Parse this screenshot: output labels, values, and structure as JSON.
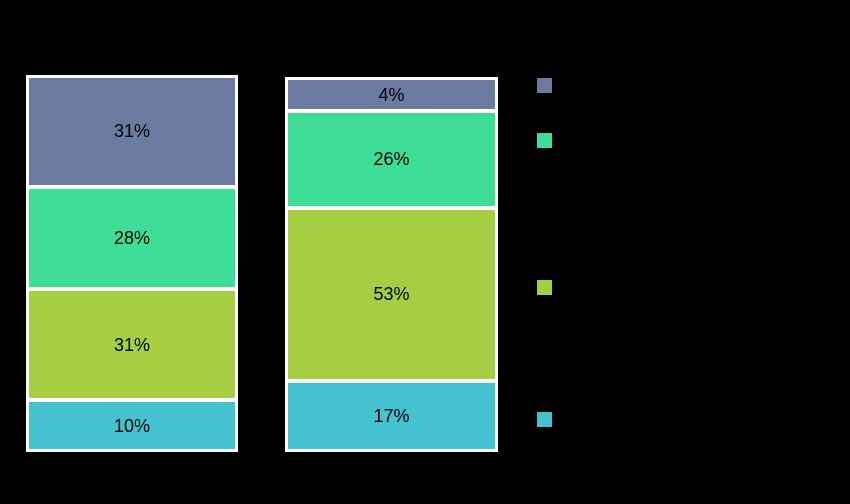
{
  "canvas": {
    "background_color": "#000000",
    "bar_outline_color": "#ffffff",
    "label_color": "#000000"
  },
  "chart_data": {
    "type": "bar",
    "variant": "100%-stacked",
    "orientation": "vertical",
    "title": "",
    "xlabel": "",
    "ylabel": "",
    "categories": [
      "",
      ""
    ],
    "stack_order": "top-to-bottom",
    "grid": false,
    "series": [
      {
        "name": "slate-blue",
        "color": "#6b7ba0",
        "values": [
          31,
          4
        ],
        "labels": [
          "31%",
          "4%"
        ]
      },
      {
        "name": "spring-green",
        "color": "#3ddc97",
        "values": [
          28,
          26
        ],
        "labels": [
          "28%",
          "26%"
        ]
      },
      {
        "name": "yellow-green",
        "color": "#a5ce43",
        "values": [
          31,
          53
        ],
        "labels": [
          "31%",
          "53%"
        ]
      },
      {
        "name": "teal",
        "color": "#45c2d0",
        "values": [
          10,
          17
        ],
        "labels": [
          "10%",
          "17%"
        ]
      }
    ],
    "legend": {
      "position": "right",
      "swatch_colors": [
        "#6b7ba0",
        "#3ddc97",
        "#a5ce43",
        "#45c2d0"
      ],
      "labels_visible": false
    }
  }
}
